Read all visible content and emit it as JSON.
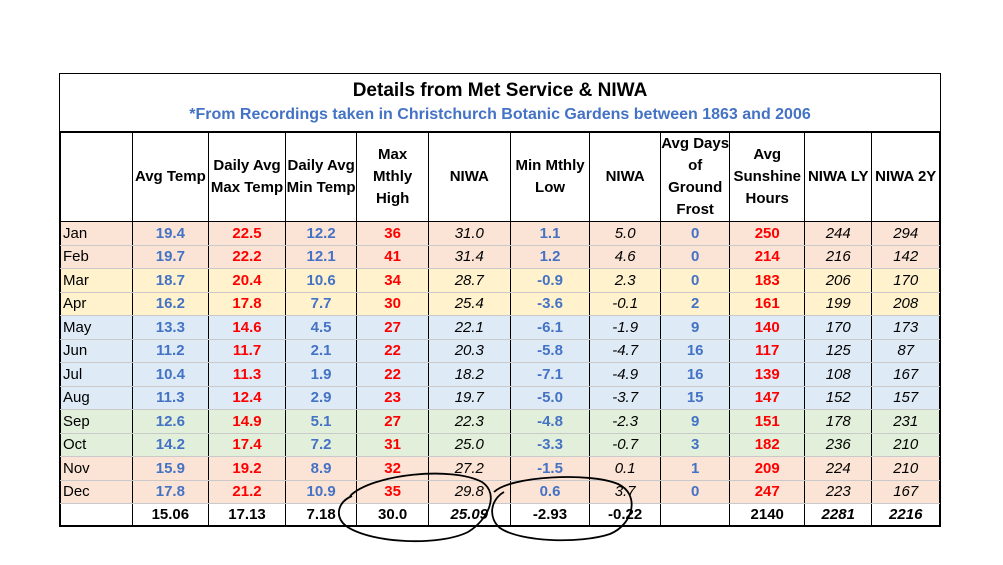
{
  "title": "Details from Met Service & NIWA",
  "subtitle": "*From Recordings taken in Christchurch Botanic Gardens between 1863 and 2006",
  "headers": [
    "",
    "Avg Temp",
    "Daily Avg Max Temp",
    "Daily Avg Min Temp",
    "Max Mthly High",
    "NIWA",
    "Min Mthly Low",
    "NIWA",
    "Avg Days of Ground Frost",
    "Avg Sunshine Hours",
    "NIWA LY",
    "NIWA 2Y"
  ],
  "rows": [
    {
      "month": "Jan",
      "season": "summer",
      "values": [
        "19.4",
        "22.5",
        "12.2",
        "36",
        "31.0",
        "1.1",
        "5.0",
        "0",
        "250",
        "244",
        "294"
      ]
    },
    {
      "month": "Feb",
      "season": "summer",
      "values": [
        "19.7",
        "22.2",
        "12.1",
        "41",
        "31.4",
        "1.2",
        "4.6",
        "0",
        "214",
        "216",
        "142"
      ]
    },
    {
      "month": "Mar",
      "season": "autumn",
      "values": [
        "18.7",
        "20.4",
        "10.6",
        "34",
        "28.7",
        "-0.9",
        "2.3",
        "0",
        "183",
        "206",
        "170"
      ]
    },
    {
      "month": "Apr",
      "season": "autumn",
      "values": [
        "16.2",
        "17.8",
        "7.7",
        "30",
        "25.4",
        "-3.6",
        "-0.1",
        "2",
        "161",
        "199",
        "208"
      ]
    },
    {
      "month": "May",
      "season": "winter",
      "values": [
        "13.3",
        "14.6",
        "4.5",
        "27",
        "22.1",
        "-6.1",
        "-1.9",
        "9",
        "140",
        "170",
        "173"
      ]
    },
    {
      "month": "Jun",
      "season": "winter",
      "values": [
        "11.2",
        "11.7",
        "2.1",
        "22",
        "20.3",
        "-5.8",
        "-4.7",
        "16",
        "117",
        "125",
        "87"
      ]
    },
    {
      "month": "Jul",
      "season": "winter",
      "values": [
        "10.4",
        "11.3",
        "1.9",
        "22",
        "18.2",
        "-7.1",
        "-4.9",
        "16",
        "139",
        "108",
        "167"
      ]
    },
    {
      "month": "Aug",
      "season": "winter",
      "values": [
        "11.3",
        "12.4",
        "2.9",
        "23",
        "19.7",
        "-5.0",
        "-3.7",
        "15",
        "147",
        "152",
        "157"
      ]
    },
    {
      "month": "Sep",
      "season": "spring",
      "values": [
        "12.6",
        "14.9",
        "5.1",
        "27",
        "22.3",
        "-4.8",
        "-2.3",
        "9",
        "151",
        "178",
        "231"
      ]
    },
    {
      "month": "Oct",
      "season": "spring",
      "values": [
        "14.2",
        "17.4",
        "7.2",
        "31",
        "25.0",
        "-3.3",
        "-0.7",
        "3",
        "182",
        "236",
        "210"
      ]
    },
    {
      "month": "Nov",
      "season": "summer",
      "values": [
        "15.9",
        "19.2",
        "8.9",
        "32",
        "27.2",
        "-1.5",
        "0.1",
        "1",
        "209",
        "224",
        "210"
      ]
    },
    {
      "month": "Dec",
      "season": "summer",
      "values": [
        "17.8",
        "21.2",
        "10.9",
        "35",
        "29.8",
        "0.6",
        "3.7",
        "0",
        "247",
        "223",
        "167"
      ]
    }
  ],
  "totals": [
    "",
    "15.06",
    "17.13",
    "7.18",
    "30.0",
    "25.09",
    "-2.93",
    "-0.22",
    "",
    "2140",
    "2281",
    "2216"
  ],
  "colors": {
    "blue_text": "#4472c4",
    "red_text": "#ff0000",
    "summer": "#fbe4d5",
    "autumn": "#fff2cc",
    "winter": "#deebf7",
    "spring": "#e2efda"
  }
}
